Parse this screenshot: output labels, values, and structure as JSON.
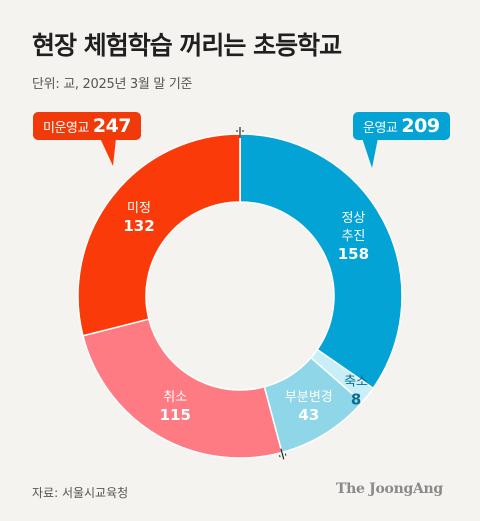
{
  "title": "현장 체험학습 꺼리는 초등학교",
  "unit_note": "단위: 교, 2025년 3월 말 기준",
  "badges": {
    "left": {
      "label": "미운영교",
      "value": "247",
      "color": "#f03a0a"
    },
    "right": {
      "label": "운영교",
      "value": "209",
      "color": "#03a3d6"
    }
  },
  "chart_data": {
    "type": "pie",
    "donut": true,
    "categories": [
      "정상 추진",
      "축소",
      "부분변경",
      "취소",
      "미정"
    ],
    "label_lines": [
      [
        "정상",
        "추진"
      ],
      [
        "축소"
      ],
      [
        "부분변경"
      ],
      [
        "취소"
      ],
      [
        "미정"
      ]
    ],
    "values": [
      158,
      8,
      43,
      115,
      132
    ],
    "colors": [
      "#03a3d6",
      "#c8eff7",
      "#8ed6e8",
      "#ff7b83",
      "#fa3a08"
    ],
    "label_colors": [
      "#ffffff",
      "#0b6d91",
      "#ffffff",
      "#ffffff",
      "#ffffff"
    ],
    "groups": [
      {
        "label": "운영교",
        "total": 209,
        "members": [
          "정상 추진",
          "축소",
          "부분변경"
        ]
      },
      {
        "label": "미운영교",
        "total": 247,
        "members": [
          "취소",
          "미정"
        ]
      }
    ]
  },
  "source": "자료: 서울시교육청",
  "logo": "The JoongAng"
}
